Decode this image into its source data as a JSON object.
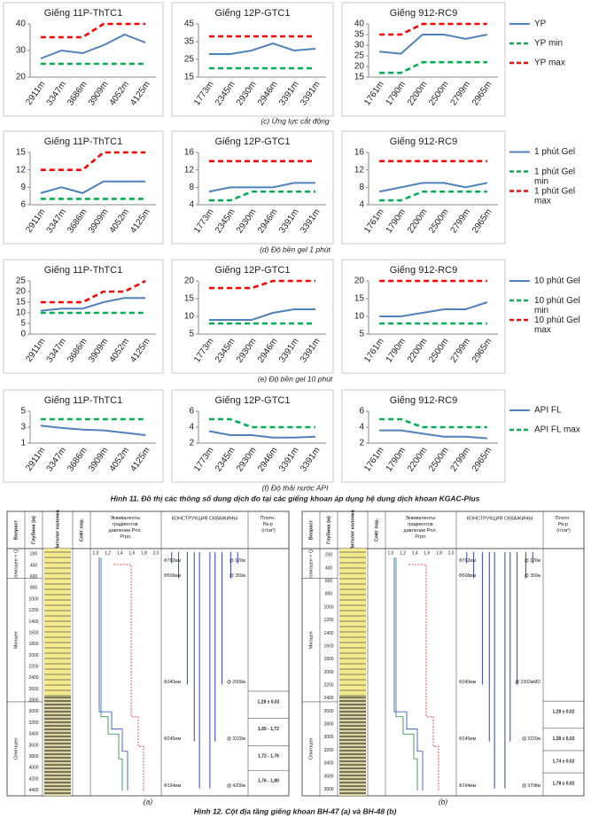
{
  "chart_data": [
    {
      "type": "line",
      "title": "Giếng 11P-ThTC1",
      "categories": [
        "2911m",
        "3347m",
        "3686m",
        "3909m",
        "4052m",
        "4125m"
      ],
      "ylim": [
        20,
        40
      ],
      "yticks": [
        20,
        30,
        40
      ],
      "series": [
        {
          "color": "#4f81bd",
          "style": "solid",
          "values": [
            27,
            30,
            29,
            32,
            36,
            33
          ]
        },
        {
          "color": "#00b050",
          "style": "dashed",
          "values": [
            25,
            25,
            25,
            25,
            25,
            25
          ]
        },
        {
          "color": "#ff0000",
          "style": "dashed",
          "values": [
            35,
            35,
            35,
            40,
            40,
            40
          ]
        }
      ]
    },
    {
      "type": "line",
      "title": "Giếng 12P-GTC1",
      "categories": [
        "1773m",
        "2345m",
        "2930m",
        "2946m",
        "3391m",
        "3391m"
      ],
      "ylim": [
        15,
        45
      ],
      "yticks": [
        15,
        25,
        35,
        45
      ],
      "series": [
        {
          "color": "#4f81bd",
          "style": "solid",
          "values": [
            28,
            28,
            30,
            34,
            30,
            31
          ]
        },
        {
          "color": "#00b050",
          "style": "dashed",
          "values": [
            20,
            20,
            20,
            20,
            20,
            20
          ]
        },
        {
          "color": "#ff0000",
          "style": "dashed",
          "values": [
            38,
            38,
            38,
            38,
            38,
            38
          ]
        }
      ]
    },
    {
      "type": "line",
      "title": "Giếng 912-RC9",
      "categories": [
        "1761m",
        "1790m",
        "2200m",
        "2500m",
        "2799m",
        "2965m"
      ],
      "ylim": [
        15,
        40
      ],
      "yticks": [
        15,
        20,
        25,
        30,
        35,
        40
      ],
      "legend": "right",
      "series": [
        {
          "name": "YP",
          "color": "#4f81bd",
          "style": "solid",
          "values": [
            27,
            26,
            35,
            35,
            33,
            35
          ]
        },
        {
          "name": "YP min",
          "color": "#00b050",
          "style": "dashed",
          "values": [
            17,
            17,
            22,
            22,
            22,
            22
          ]
        },
        {
          "name": "YP max",
          "color": "#ff0000",
          "style": "dashed",
          "values": [
            35,
            35,
            40,
            40,
            40,
            40
          ]
        }
      ]
    },
    {
      "type": "line",
      "title": "Giếng 11P-ThTC1",
      "categories": [
        "2911m",
        "3347m",
        "3686m",
        "3909m",
        "4052m",
        "4125m"
      ],
      "ylim": [
        6,
        15
      ],
      "yticks": [
        6,
        9,
        12,
        15
      ],
      "series": [
        {
          "color": "#4f81bd",
          "style": "solid",
          "values": [
            8,
            9,
            8,
            10,
            10,
            10
          ]
        },
        {
          "color": "#00b050",
          "style": "dashed",
          "values": [
            7,
            7,
            7,
            7,
            7,
            7
          ]
        },
        {
          "color": "#ff0000",
          "style": "dashed",
          "values": [
            12,
            12,
            12,
            15,
            15,
            15
          ]
        }
      ]
    },
    {
      "type": "line",
      "title": "Giếng 12P-GTC1",
      "categories": [
        "1773m",
        "2345m",
        "2930m",
        "2946m",
        "3391m",
        "3391m"
      ],
      "ylim": [
        4,
        16
      ],
      "yticks": [
        4,
        8,
        12,
        16
      ],
      "series": [
        {
          "color": "#4f81bd",
          "style": "solid",
          "values": [
            7,
            8,
            8,
            8,
            9,
            9
          ]
        },
        {
          "color": "#00b050",
          "style": "dashed",
          "values": [
            5,
            5,
            7,
            7,
            7,
            7
          ]
        },
        {
          "color": "#ff0000",
          "style": "dashed",
          "values": [
            14,
            14,
            14,
            14,
            14,
            14
          ]
        }
      ]
    },
    {
      "type": "line",
      "title": "Giếng 912-RC9",
      "categories": [
        "1761m",
        "1790m",
        "2200m",
        "2500m",
        "2799m",
        "2965m"
      ],
      "ylim": [
        4,
        16
      ],
      "yticks": [
        4,
        8,
        12,
        16
      ],
      "legend": "right",
      "series": [
        {
          "name": "1 phút Gel",
          "color": "#4f81bd",
          "style": "solid",
          "values": [
            7,
            8,
            9,
            9,
            8,
            9
          ]
        },
        {
          "name": "1 phút Gel min",
          "color": "#00b050",
          "style": "dashed",
          "values": [
            5,
            5,
            7,
            7,
            7,
            7
          ]
        },
        {
          "name": "1 phút Gel max",
          "color": "#ff0000",
          "style": "dashed",
          "values": [
            14,
            14,
            14,
            14,
            14,
            14
          ]
        }
      ]
    },
    {
      "type": "line",
      "title": "Giếng 11P-ThTC1",
      "categories": [
        "2911m",
        "3347m",
        "3686m",
        "3909m",
        "4052m",
        "4125m"
      ],
      "ylim": [
        0,
        25
      ],
      "yticks": [
        0,
        5,
        10,
        15,
        20,
        25
      ],
      "series": [
        {
          "color": "#4f81bd",
          "style": "solid",
          "values": [
            11,
            12,
            12,
            15,
            17,
            17
          ]
        },
        {
          "color": "#00b050",
          "style": "dashed",
          "values": [
            10,
            10,
            10,
            10,
            10,
            10
          ]
        },
        {
          "color": "#ff0000",
          "style": "dashed",
          "values": [
            15,
            15,
            15,
            20,
            20,
            25
          ]
        }
      ]
    },
    {
      "type": "line",
      "title": "Giếng 12P-GTC1",
      "categories": [
        "1773m",
        "2345m",
        "2930m",
        "2946m",
        "3391m",
        "3391m"
      ],
      "ylim": [
        5,
        20
      ],
      "yticks": [
        5,
        10,
        15,
        20
      ],
      "series": [
        {
          "color": "#4f81bd",
          "style": "solid",
          "values": [
            9,
            9,
            9,
            11,
            12,
            12
          ]
        },
        {
          "color": "#00b050",
          "style": "dashed",
          "values": [
            8,
            8,
            8,
            8,
            8,
            8
          ]
        },
        {
          "color": "#ff0000",
          "style": "dashed",
          "values": [
            18,
            18,
            18,
            20,
            20,
            20
          ]
        }
      ]
    },
    {
      "type": "line",
      "title": "Giếng 912-RC9",
      "categories": [
        "1761m",
        "1790m",
        "2200m",
        "2500m",
        "2799m",
        "2965m"
      ],
      "ylim": [
        5,
        20
      ],
      "yticks": [
        5,
        10,
        15,
        20
      ],
      "legend": "right",
      "series": [
        {
          "name": "10 phút Gel",
          "color": "#4f81bd",
          "style": "solid",
          "values": [
            10,
            10,
            11,
            12,
            12,
            14
          ]
        },
        {
          "name": "10 phút Gel min",
          "color": "#00b050",
          "style": "dashed",
          "values": [
            8,
            8,
            8,
            8,
            8,
            8
          ]
        },
        {
          "name": "10 phút Gel max",
          "color": "#ff0000",
          "style": "dashed",
          "values": [
            20,
            20,
            20,
            20,
            20,
            20
          ]
        }
      ]
    },
    {
      "type": "line",
      "title": "Giếng 11P-ThTC1",
      "categories": [
        "2911m",
        "3347m",
        "3686m",
        "3909m",
        "4052m",
        "4125m"
      ],
      "ylim": [
        1,
        5
      ],
      "yticks": [
        1,
        3,
        5
      ],
      "series": [
        {
          "color": "#4f81bd",
          "style": "solid",
          "values": [
            3.2,
            2.9,
            2.7,
            2.6,
            2.3,
            2.0
          ]
        },
        {
          "color": "#00b050",
          "style": "dashed",
          "values": [
            4,
            4,
            4,
            4,
            4,
            4
          ]
        }
      ]
    },
    {
      "type": "line",
      "title": "Giếng 12P-GTC1",
      "categories": [
        "1773m",
        "2345m",
        "2930m",
        "2946m",
        "3391m",
        "3391m"
      ],
      "ylim": [
        2,
        6
      ],
      "yticks": [
        2,
        4,
        6
      ],
      "series": [
        {
          "color": "#4f81bd",
          "style": "solid",
          "values": [
            3.5,
            3.0,
            3.0,
            2.7,
            2.7,
            2.8
          ]
        },
        {
          "color": "#00b050",
          "style": "dashed",
          "values": [
            5,
            5,
            4,
            4,
            4,
            4
          ]
        }
      ]
    },
    {
      "type": "line",
      "title": "Giếng 912-RC9",
      "categories": [
        "1761m",
        "1790m",
        "2200m",
        "2500m",
        "2799m",
        "2965m"
      ],
      "ylim": [
        2,
        6
      ],
      "yticks": [
        2,
        4,
        6
      ],
      "legend": "right",
      "series": [
        {
          "name": "API FL",
          "color": "#4f81bd",
          "style": "solid",
          "values": [
            3.6,
            3.6,
            3.2,
            2.8,
            2.8,
            2.6
          ]
        },
        {
          "name": "API FL max",
          "color": "#00b050",
          "style": "dashed",
          "values": [
            5,
            5,
            4,
            4,
            4,
            4
          ]
        }
      ]
    }
  ],
  "row_captions": [
    "(c) Ứng lực cắt động",
    "(d) Độ bền gel 1 phút",
    "(e) Độ bền gel 10 phút",
    "(f) Độ thải nước API"
  ],
  "figure11_caption": "Hình 11. Đồ thị các thông số dung dịch đo tại các giếng khoan áp dụng hệ dung dịch khoan KGAC-Plus",
  "figure12": {
    "caption": "Hình 12. Cột địa tầng giếng khoan BH-47 (a) và BH-48 (b)",
    "panels": [
      {
        "label": "(a)",
        "headers": [
          "Возраст",
          "Глубина (м)",
          "Литолог колонка",
          "Сейт пор.",
          "Эквиваленты градиентов давлении Pпл, Pгрп.",
          "КОНСТРУКЦИЯ СКВАЖИНЫ",
          "Плотн. Pв-р (г/см³)"
        ],
        "ages": [
          "плиоцен + Q",
          "Миоцен",
          "Олигоцен"
        ],
        "depths": [
          "200",
          "400",
          "600",
          "800",
          "1000",
          "1200",
          "1400",
          "1600",
          "1800",
          "2000",
          "2200",
          "2400",
          "2600",
          "2800",
          "3000",
          "3200",
          "3400",
          "3600",
          "3800",
          "4000",
          "4200",
          "4400"
        ],
        "gradient_ticks": [
          "1,0",
          "1,2",
          "1,4",
          "1,6",
          "1,8",
          "2,0"
        ],
        "casing": [
          "Ф762мм",
          "@ 120м",
          "Ф508мм",
          "@ 350м",
          "Ф340мм",
          "@ 2000м",
          "Ф245мм",
          "@ 3220м",
          "Ф194мм",
          "@ 4200м"
        ],
        "densities": [
          "1,28 ± 0,02",
          "1,65 - 1,72",
          "1,72 - 1,76",
          "1,76 - 1,80"
        ]
      },
      {
        "label": "(b)",
        "headers": [
          "Возраст",
          "Глубина (м)",
          "Литолог колонка",
          "Сейт пор.",
          "Эквиваленты градиентов давлении Pпл, Pгрп.",
          "КОНСТРУКЦИЯ СКВАЖИНЫ",
          "Плотн. Pв-р (г/см³)"
        ],
        "ages": [
          "плиоцен + Q",
          "Миоцен",
          "Олигоцен"
        ],
        "depths": [
          "200",
          "400",
          "600",
          "800",
          "1000",
          "1200",
          "1400",
          "1600",
          "1800",
          "2000",
          "2200",
          "2400",
          "2600",
          "2800",
          "3000",
          "3200",
          "3400",
          "3600",
          "3800"
        ],
        "gradient_ticks": [
          "1,0",
          "1,2",
          "1,4",
          "1,6",
          "1,8",
          "2,0"
        ],
        "casing": [
          "Ф762мм",
          "@ 120м",
          "Ф508мм",
          "@ 350м",
          "Ф340мм",
          "@ 2302мMD",
          "Ф245мм",
          "@ 3220м",
          "Ф194мм",
          "@ 3798м"
        ],
        "densities": [
          "1,28 ± 0,02",
          "1,28 ± 0,02",
          "1,74 ± 0,02",
          "1,78 ± 0,02"
        ]
      }
    ]
  }
}
